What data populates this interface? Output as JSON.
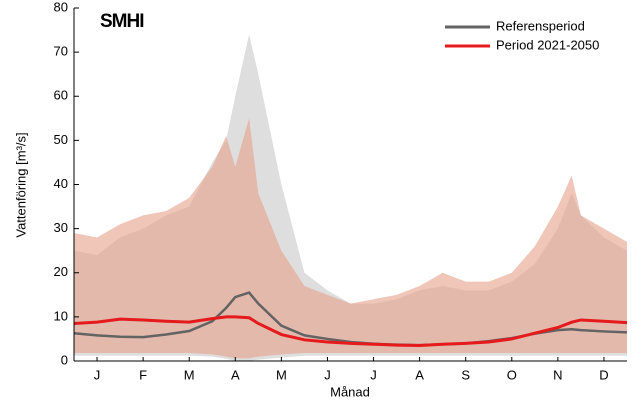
{
  "chart_data": {
    "type": "line",
    "logo": "SMHI",
    "ylabel": "Vattenföring [m³/s]",
    "xlabel": "Månad",
    "x": [
      0,
      0.5,
      1,
      1.5,
      2,
      2.5,
      3,
      3.3,
      3.5,
      3.8,
      4,
      4.5,
      5,
      5.5,
      6,
      6.5,
      7,
      7.5,
      8,
      8.5,
      9,
      9.5,
      10,
      10.5,
      10.8,
      11,
      11.5,
      12
    ],
    "xlim": [
      0,
      12
    ],
    "xticks": [
      {
        "value": 0.5,
        "label": "J"
      },
      {
        "value": 1.5,
        "label": "F"
      },
      {
        "value": 2.5,
        "label": "M"
      },
      {
        "value": 3.5,
        "label": "A"
      },
      {
        "value": 4.5,
        "label": "M"
      },
      {
        "value": 5.5,
        "label": "J"
      },
      {
        "value": 6.5,
        "label": "J"
      },
      {
        "value": 7.5,
        "label": "A"
      },
      {
        "value": 8.5,
        "label": "S"
      },
      {
        "value": 9.5,
        "label": "O"
      },
      {
        "value": 10.5,
        "label": "N"
      },
      {
        "value": 11.5,
        "label": "D"
      }
    ],
    "ylim": [
      0,
      80
    ],
    "yticks": [
      0,
      10,
      20,
      30,
      40,
      50,
      60,
      70,
      80
    ],
    "bands": [
      {
        "color": "#dedede",
        "upper": [
          25,
          24,
          28,
          30,
          33,
          35,
          45,
          50,
          60,
          74,
          65,
          40,
          20,
          16,
          13,
          13,
          14,
          16,
          17,
          16,
          16,
          18,
          22,
          30,
          38,
          33,
          28,
          25
        ],
        "lower": [
          1.2,
          1.2,
          1.2,
          1.2,
          1.2,
          1.2,
          1,
          0.5,
          0,
          0,
          0.3,
          0.8,
          1.2,
          1.2,
          1.2,
          1.2,
          1.2,
          1.2,
          1.2,
          1.2,
          1.2,
          1.2,
          1.2,
          1.2,
          1.2,
          1.2,
          1.2,
          1.2
        ]
      },
      {
        "color": "#e6a08a",
        "upper": [
          29,
          28,
          31,
          33,
          34,
          37,
          44,
          51,
          44,
          55,
          38,
          25,
          17,
          15,
          13,
          14,
          15,
          17,
          20,
          18,
          18,
          20,
          26,
          35,
          42,
          33,
          30,
          27
        ],
        "lower": [
          1.8,
          1.8,
          1.8,
          1.8,
          1.8,
          1.8,
          1.5,
          1,
          0.6,
          0.6,
          1,
          1.5,
          1.8,
          1.8,
          1.8,
          1.8,
          1.8,
          1.8,
          1.8,
          1.8,
          1.8,
          1.8,
          1.8,
          1.8,
          1.8,
          1.8,
          1.8,
          1.8
        ]
      }
    ],
    "series": [
      {
        "name": "Referensperiod",
        "color": "#636363",
        "values": [
          6.3,
          5.8,
          5.5,
          5.4,
          6,
          6.8,
          9,
          12,
          14.5,
          15.5,
          13,
          8,
          5.8,
          5,
          4.3,
          3.9,
          3.7,
          3.6,
          3.8,
          4,
          4.5,
          5.2,
          6.2,
          7,
          7.2,
          7,
          6.7,
          6.5
        ]
      },
      {
        "name": "Period 2021-2050",
        "color": "#e41a1c",
        "values": [
          8.5,
          8.8,
          9.5,
          9.3,
          9,
          8.8,
          9.6,
          10,
          10,
          9.8,
          8.5,
          6,
          4.8,
          4.3,
          4,
          3.8,
          3.6,
          3.5,
          3.8,
          4,
          4.3,
          5,
          6.3,
          7.6,
          8.8,
          9.3,
          9,
          8.7
        ]
      }
    ]
  }
}
